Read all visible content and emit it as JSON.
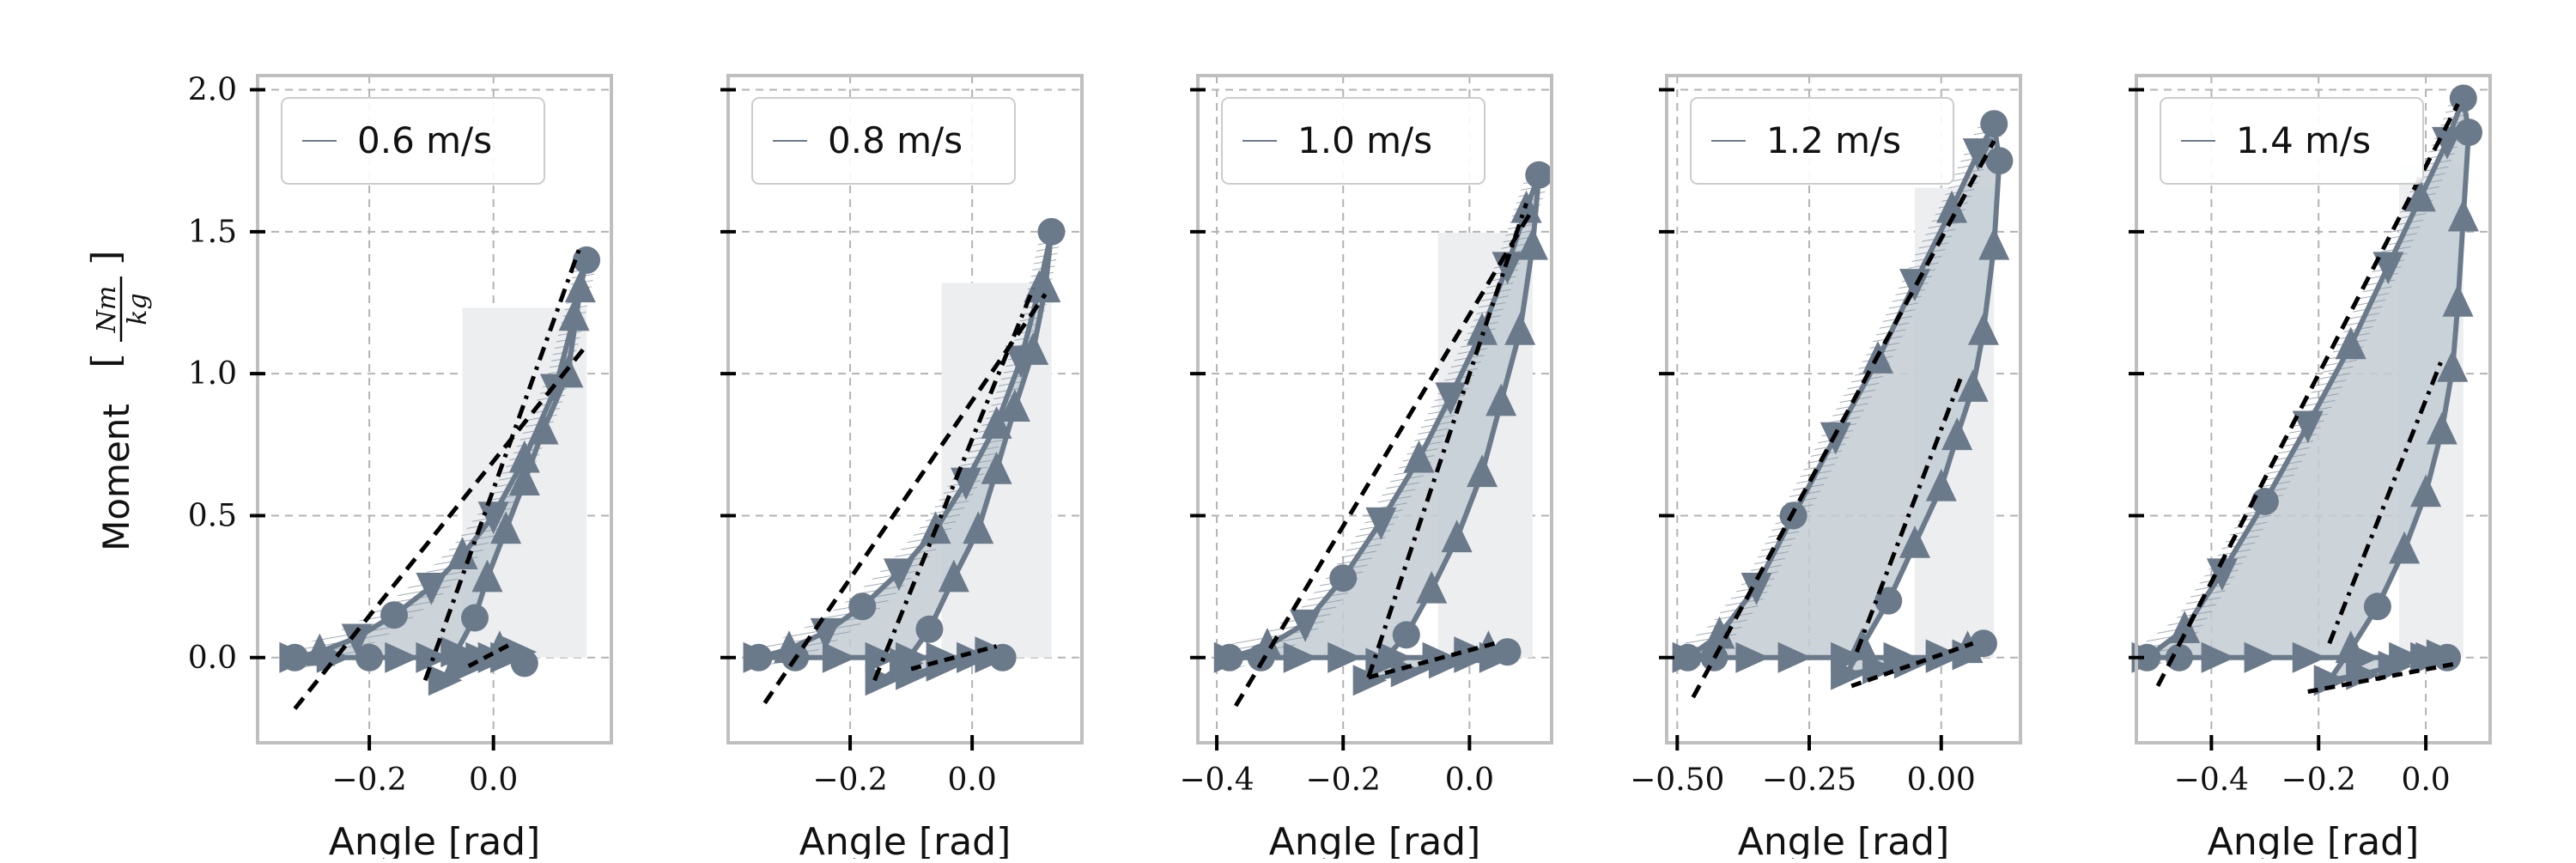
{
  "figure": {
    "ylabel": "Moment [Nm/kg]",
    "ylabel_prefix": "Moment",
    "ylabel_num": "Nm",
    "ylabel_den": "kg",
    "xlabel": "Angle [rad]",
    "ylim": [
      -0.3,
      2.05
    ],
    "yticks": [
      0.0,
      0.5,
      1.0,
      1.5,
      2.0
    ],
    "grid": true,
    "legend_placement": "top-left",
    "colors": {
      "series": "#6b7a8a",
      "fill_dark": "#c3ccd4",
      "fill_light": "#eceef0",
      "hatch": "#8a96a3",
      "fit_line": "#000000",
      "frame": "#bfbfbf",
      "grid": "#b3b3b3"
    }
  },
  "chart_data": [
    {
      "type": "line",
      "legend": "0.6 m/s",
      "xlim": [
        -0.38,
        0.19
      ],
      "xticks": [
        -0.2,
        0.0
      ],
      "xtick_labels": [
        "−0.2",
        "0.0"
      ],
      "x": [
        -0.32,
        -0.28,
        -0.22,
        -0.16,
        -0.1,
        -0.05,
        0.0,
        0.05,
        0.1,
        0.13,
        0.15,
        0.14,
        0.12,
        0.08,
        0.05,
        0.02,
        -0.01,
        -0.03,
        -0.06,
        -0.08,
        -0.05,
        -0.02,
        0.01,
        0.03,
        0.05,
        0.04,
        0.02,
        0.0,
        -0.05,
        -0.1,
        -0.15,
        -0.2,
        -0.26,
        -0.32
      ],
      "y": [
        0.0,
        0.02,
        0.07,
        0.15,
        0.25,
        0.36,
        0.5,
        0.7,
        0.95,
        1.2,
        1.4,
        1.3,
        1.0,
        0.8,
        0.62,
        0.45,
        0.28,
        0.14,
        0.02,
        -0.08,
        -0.04,
        0.0,
        0.03,
        0.02,
        -0.02,
        0.02,
        0.0,
        0.0,
        0.0,
        0.0,
        0.0,
        0.0,
        0.0,
        0.0
      ],
      "fit_lines": [
        {
          "x": [
            -0.32,
            0.15
          ],
          "y": [
            -0.18,
            1.1
          ]
        },
        {
          "x": [
            -0.11,
            0.14
          ],
          "y": [
            -0.08,
            1.45
          ]
        },
        {
          "x": [
            -0.04,
            0.03
          ],
          "y": [
            -0.03,
            0.05
          ]
        }
      ],
      "fill_light_x": [
        -0.05,
        0.15
      ]
    },
    {
      "type": "line",
      "legend": "0.8 m/s",
      "xlim": [
        -0.4,
        0.18
      ],
      "xticks": [
        -0.2,
        0.0
      ],
      "xtick_labels": [
        "−0.2",
        "0.0"
      ],
      "x": [
        -0.35,
        -0.3,
        -0.24,
        -0.18,
        -0.12,
        -0.06,
        -0.01,
        0.04,
        0.08,
        0.11,
        0.13,
        0.12,
        0.1,
        0.07,
        0.04,
        0.01,
        -0.03,
        -0.07,
        -0.11,
        -0.15,
        -0.1,
        -0.05,
        0.0,
        0.03,
        0.05,
        0.03,
        0.0,
        -0.05,
        -0.1,
        -0.15,
        -0.22,
        -0.29,
        -0.35
      ],
      "y": [
        0.0,
        0.03,
        0.09,
        0.18,
        0.3,
        0.45,
        0.62,
        0.82,
        1.05,
        1.3,
        1.5,
        1.3,
        1.08,
        0.88,
        0.66,
        0.45,
        0.28,
        0.1,
        -0.02,
        -0.08,
        -0.06,
        -0.03,
        0.0,
        0.02,
        0.0,
        0.0,
        0.0,
        0.0,
        0.0,
        0.0,
        0.0,
        0.0,
        0.0
      ],
      "fit_lines": [
        {
          "x": [
            -0.34,
            0.12
          ],
          "y": [
            -0.16,
            1.28
          ]
        },
        {
          "x": [
            -0.16,
            0.1
          ],
          "y": [
            -0.08,
            1.3
          ]
        },
        {
          "x": [
            -0.1,
            0.04
          ],
          "y": [
            -0.04,
            0.04
          ]
        }
      ],
      "fill_light_x": [
        -0.05,
        0.13
      ]
    },
    {
      "type": "line",
      "legend": "1.0 m/s",
      "xlim": [
        -0.43,
        0.13
      ],
      "xticks": [
        -0.4,
        -0.2,
        0.0
      ],
      "xtick_labels": [
        "−0.4",
        "−0.2",
        "0.0"
      ],
      "x": [
        -0.38,
        -0.32,
        -0.26,
        -0.2,
        -0.14,
        -0.08,
        -0.03,
        0.02,
        0.06,
        0.09,
        0.11,
        0.1,
        0.08,
        0.05,
        0.02,
        -0.02,
        -0.06,
        -0.1,
        -0.14,
        -0.16,
        -0.1,
        -0.04,
        0.0,
        0.03,
        0.06,
        0.04,
        0.0,
        -0.05,
        -0.12,
        -0.2,
        -0.27,
        -0.33,
        -0.38
      ],
      "y": [
        0.0,
        0.04,
        0.12,
        0.28,
        0.48,
        0.7,
        0.92,
        1.15,
        1.38,
        1.58,
        1.7,
        1.45,
        1.15,
        0.9,
        0.65,
        0.42,
        0.24,
        0.08,
        -0.02,
        -0.08,
        -0.05,
        -0.02,
        0.02,
        0.03,
        0.02,
        0.0,
        0.0,
        0.0,
        0.0,
        0.0,
        0.0,
        0.0,
        0.0
      ],
      "fit_lines": [
        {
          "x": [
            -0.37,
            0.1
          ],
          "y": [
            -0.17,
            1.58
          ]
        },
        {
          "x": [
            -0.16,
            0.09
          ],
          "y": [
            -0.07,
            1.6
          ]
        },
        {
          "x": [
            -0.16,
            0.04
          ],
          "y": [
            -0.07,
            0.05
          ]
        }
      ],
      "fill_light_x": [
        -0.05,
        0.1
      ]
    },
    {
      "type": "line",
      "legend": "1.2 m/s",
      "xlim": [
        -0.52,
        0.15
      ],
      "xticks": [
        -0.5,
        -0.25,
        0.0
      ],
      "xtick_labels": [
        "−0.50",
        "−0.25",
        "0.00"
      ],
      "x": [
        -0.48,
        -0.42,
        -0.35,
        -0.28,
        -0.2,
        -0.12,
        -0.05,
        0.02,
        0.07,
        0.1,
        0.11,
        0.1,
        0.08,
        0.06,
        0.03,
        0.0,
        -0.05,
        -0.1,
        -0.15,
        -0.18,
        -0.12,
        -0.06,
        0.0,
        0.05,
        0.08,
        0.05,
        0.0,
        -0.08,
        -0.18,
        -0.28,
        -0.36,
        -0.43,
        -0.48
      ],
      "y": [
        0.0,
        0.08,
        0.25,
        0.5,
        0.78,
        1.05,
        1.32,
        1.58,
        1.78,
        1.88,
        1.75,
        1.45,
        1.15,
        0.95,
        0.78,
        0.6,
        0.4,
        0.2,
        0.04,
        -0.06,
        -0.04,
        -0.02,
        0.01,
        0.03,
        0.05,
        0.01,
        0.0,
        0.0,
        0.0,
        0.0,
        0.0,
        0.0,
        0.0
      ],
      "fit_lines": [
        {
          "x": [
            -0.47,
            0.1
          ],
          "y": [
            -0.14,
            1.82
          ]
        },
        {
          "x": [
            -0.16,
            0.04
          ],
          "y": [
            0.02,
            1.0
          ]
        },
        {
          "x": [
            -0.17,
            0.06
          ],
          "y": [
            -0.1,
            0.05
          ]
        }
      ],
      "fill_light_x": [
        -0.05,
        0.1
      ]
    },
    {
      "type": "line",
      "legend": "1.4 m/s",
      "xlim": [
        -0.54,
        0.12
      ],
      "xticks": [
        -0.4,
        -0.2,
        0.0
      ],
      "xtick_labels": [
        "−0.4",
        "−0.2",
        "0.0"
      ],
      "x": [
        -0.52,
        -0.45,
        -0.38,
        -0.3,
        -0.22,
        -0.14,
        -0.07,
        -0.01,
        0.04,
        0.07,
        0.08,
        0.07,
        0.06,
        0.05,
        0.03,
        0.0,
        -0.04,
        -0.09,
        -0.14,
        -0.18,
        -0.12,
        -0.06,
        0.0,
        0.03,
        0.04,
        0.01,
        -0.04,
        -0.12,
        -0.22,
        -0.31,
        -0.39,
        -0.46,
        -0.52
      ],
      "y": [
        0.0,
        0.1,
        0.3,
        0.55,
        0.82,
        1.1,
        1.38,
        1.62,
        1.82,
        1.97,
        1.85,
        1.55,
        1.25,
        1.02,
        0.8,
        0.58,
        0.38,
        0.18,
        0.03,
        -0.08,
        -0.06,
        -0.03,
        0.0,
        0.01,
        0.0,
        0.0,
        0.0,
        0.0,
        0.0,
        0.0,
        0.0,
        0.0,
        0.0
      ],
      "fit_lines": [
        {
          "x": [
            -0.5,
            0.06
          ],
          "y": [
            -0.1,
            1.95
          ]
        },
        {
          "x": [
            -0.18,
            0.03
          ],
          "y": [
            0.05,
            1.05
          ]
        },
        {
          "x": [
            -0.22,
            0.06
          ],
          "y": [
            -0.12,
            -0.02
          ]
        }
      ],
      "fill_light_x": [
        -0.05,
        0.07
      ]
    }
  ]
}
